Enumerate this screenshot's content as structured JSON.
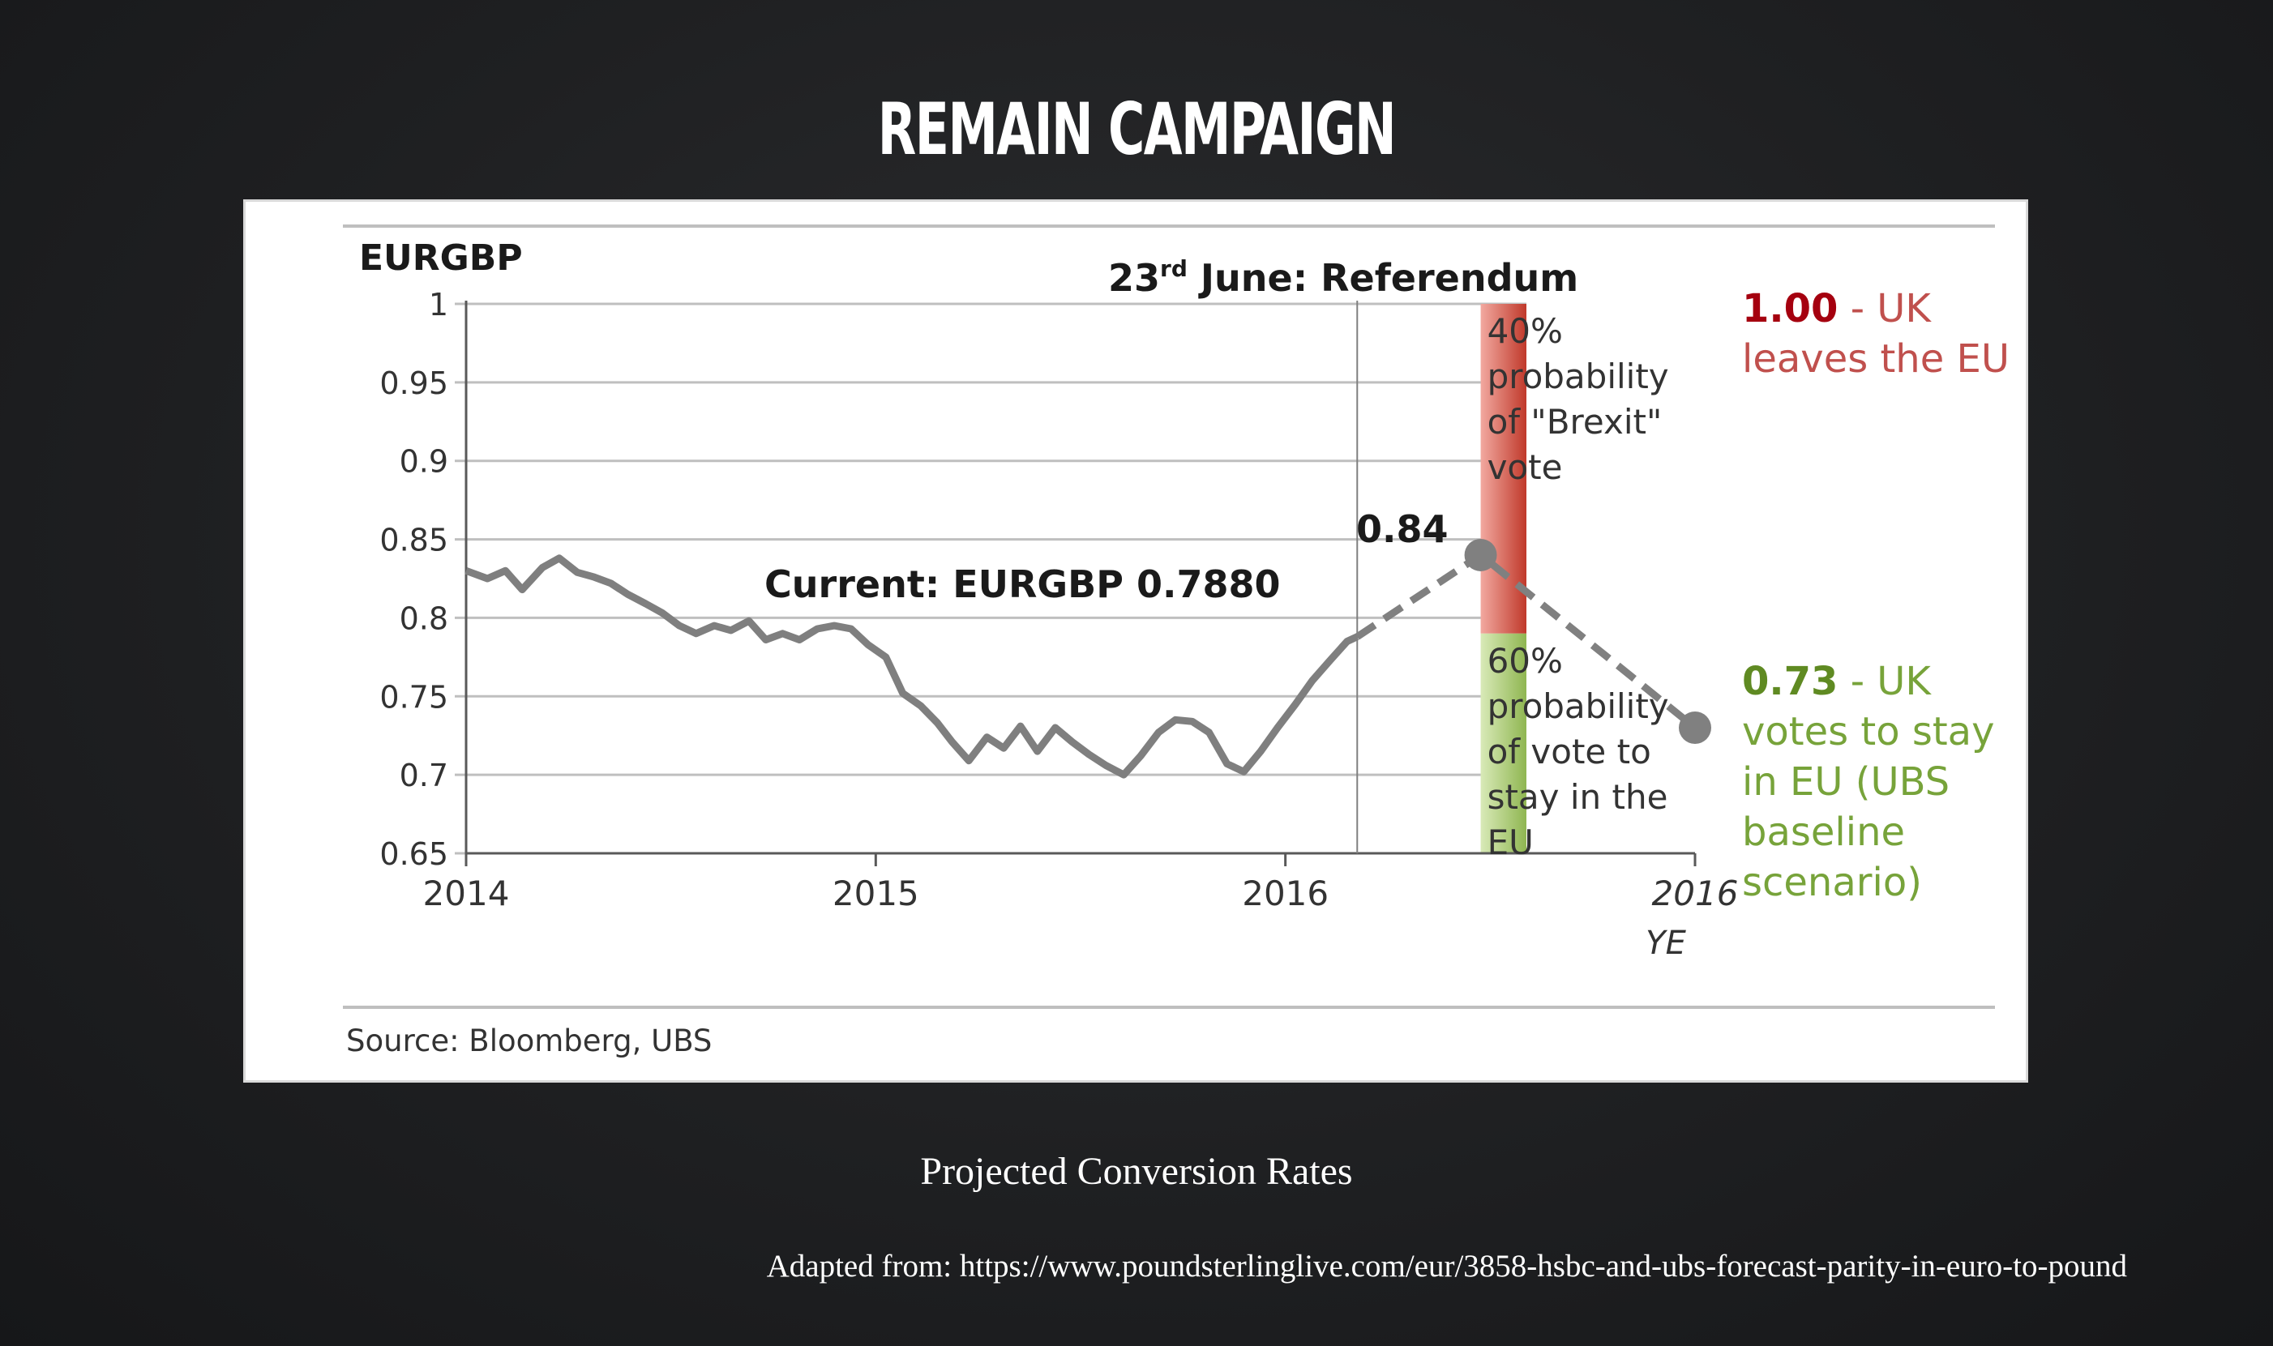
{
  "page": {
    "title": "REMAIN CAMPAIGN",
    "caption": "Projected Conversion Rates",
    "attribution": "Adapted from: https://www.poundsterlinglive.com/eur/3858-hsbc-and-ubs-forecast-parity-in-euro-to-pound"
  },
  "chart_data": {
    "type": "line",
    "title": "EURGBP",
    "source": "Source:  Bloomberg, UBS",
    "ylim": [
      0.65,
      1.0
    ],
    "y_ticks": [
      {
        "value": 1.0,
        "label": "1"
      },
      {
        "value": 0.95,
        "label": "0.95"
      },
      {
        "value": 0.9,
        "label": "0.9"
      },
      {
        "value": 0.85,
        "label": "0.85"
      },
      {
        "value": 0.8,
        "label": "0.8"
      },
      {
        "value": 0.75,
        "label": "0.75"
      },
      {
        "value": 0.7,
        "label": "0.7"
      },
      {
        "value": 0.65,
        "label": "0.65"
      }
    ],
    "x_ticks": [
      {
        "value": "2014-01-01",
        "label": "2014"
      },
      {
        "value": "2015-01-01",
        "label": "2015"
      },
      {
        "value": "2016-01-01",
        "label": "2016"
      },
      {
        "value": "2016-12-31",
        "label": "2016",
        "sublabel": "YE"
      }
    ],
    "xlim": [
      "2014-01-01",
      "2016-12-31"
    ],
    "grid": true,
    "history": {
      "color": "#7f7f7f",
      "points": [
        [
          "2014-01-01",
          0.83
        ],
        [
          "2014-01-20",
          0.825
        ],
        [
          "2014-02-05",
          0.83
        ],
        [
          "2014-02-20",
          0.818
        ],
        [
          "2014-03-10",
          0.832
        ],
        [
          "2014-03-25",
          0.838
        ],
        [
          "2014-04-10",
          0.829
        ],
        [
          "2014-04-25",
          0.826
        ],
        [
          "2014-05-10",
          0.822
        ],
        [
          "2014-05-25",
          0.815
        ],
        [
          "2014-06-10",
          0.809
        ],
        [
          "2014-06-25",
          0.803
        ],
        [
          "2014-07-10",
          0.795
        ],
        [
          "2014-07-25",
          0.79
        ],
        [
          "2014-08-10",
          0.795
        ],
        [
          "2014-08-25",
          0.792
        ],
        [
          "2014-09-10",
          0.798
        ],
        [
          "2014-09-25",
          0.786
        ],
        [
          "2014-10-10",
          0.79
        ],
        [
          "2014-10-25",
          0.786
        ],
        [
          "2014-11-10",
          0.793
        ],
        [
          "2014-11-25",
          0.795
        ],
        [
          "2014-12-10",
          0.793
        ],
        [
          "2014-12-25",
          0.783
        ],
        [
          "2015-01-10",
          0.775
        ],
        [
          "2015-01-25",
          0.752
        ],
        [
          "2015-02-10",
          0.744
        ],
        [
          "2015-02-25",
          0.733
        ],
        [
          "2015-03-10",
          0.721
        ],
        [
          "2015-03-25",
          0.709
        ],
        [
          "2015-04-10",
          0.724
        ],
        [
          "2015-04-25",
          0.717
        ],
        [
          "2015-05-10",
          0.731
        ],
        [
          "2015-05-25",
          0.715
        ],
        [
          "2015-06-10",
          0.73
        ],
        [
          "2015-06-25",
          0.721
        ],
        [
          "2015-07-10",
          0.713
        ],
        [
          "2015-07-25",
          0.706
        ],
        [
          "2015-08-10",
          0.7
        ],
        [
          "2015-08-25",
          0.712
        ],
        [
          "2015-09-10",
          0.727
        ],
        [
          "2015-09-25",
          0.735
        ],
        [
          "2015-10-10",
          0.734
        ],
        [
          "2015-10-25",
          0.727
        ],
        [
          "2015-11-10",
          0.707
        ],
        [
          "2015-11-25",
          0.702
        ],
        [
          "2015-12-10",
          0.715
        ],
        [
          "2015-12-25",
          0.73
        ],
        [
          "2016-01-10",
          0.745
        ],
        [
          "2016-01-25",
          0.76
        ],
        [
          "2016-02-10",
          0.773
        ],
        [
          "2016-02-25",
          0.785
        ],
        [
          "2016-03-05",
          0.788
        ]
      ]
    },
    "forecast": {
      "color": "#808080",
      "points": [
        [
          "2016-03-05",
          0.788
        ],
        [
          "2016-06-23",
          0.84
        ],
        [
          "2016-12-31",
          0.73
        ]
      ]
    },
    "current": {
      "date": "2016-03-05",
      "label": "Current: EURGBP 0.7880"
    },
    "referendum": {
      "date": "2016-06-23",
      "label_pre": "23",
      "label_sup": "rd",
      "label_post": " June: Referendum",
      "value": 0.84,
      "value_label": "0.84"
    },
    "scenarios": [
      {
        "name": "brexit",
        "range": [
          0.79,
          1.0
        ],
        "color_dark": "#c0392b",
        "color_light": "#f2a9a0",
        "text_lines": [
          "40%",
          "probability",
          "of \"Brexit\"",
          "vote"
        ],
        "outcome_value": "1.00",
        "outcome_lines": [
          " - UK",
          "leaves the EU"
        ],
        "outcome_color": "#c0504d",
        "outcome_value_color": "#a5000f"
      },
      {
        "name": "remain",
        "range": [
          0.65,
          0.79
        ],
        "color_dark": "#8fb651",
        "color_light": "#d9eab8",
        "text_lines": [
          "60%",
          "probability",
          "of vote to",
          "stay in the",
          "EU"
        ],
        "outcome_value": "0.73",
        "outcome_lines": [
          " - UK",
          "votes to stay",
          "in EU (UBS",
          "baseline",
          "scenario)"
        ],
        "outcome_color": "#77a33a",
        "outcome_value_color": "#5f8a22"
      }
    ]
  }
}
